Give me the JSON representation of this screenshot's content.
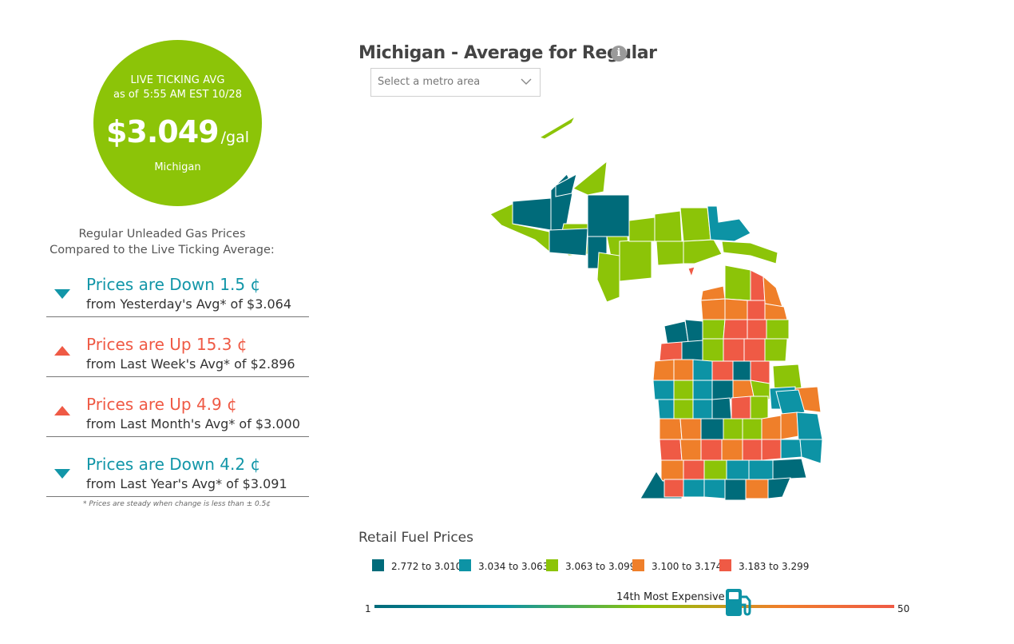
{
  "live_avg": {
    "label": "LIVE TICKING AVG",
    "as_of_prefix": "as of",
    "time": "5:55 AM EST 10/28",
    "price": "$3.049",
    "unit": "/gal",
    "state": "Michigan"
  },
  "comparisons": {
    "title_line1": "Regular Unleaded Gas Prices",
    "title_line2": "Compared to the Live Ticking Average:",
    "items": [
      {
        "direction": "down",
        "headline": "Prices are Down 1.5 ¢",
        "detail": "from Yesterday's Avg* of $3.064"
      },
      {
        "direction": "up",
        "headline": "Prices are Up 15.3 ¢",
        "detail": "from Last Week's Avg* of $2.896"
      },
      {
        "direction": "up",
        "headline": "Prices are Up 4.9 ¢",
        "detail": "from Last Month's Avg* of $3.000"
      },
      {
        "direction": "down",
        "headline": "Prices are Down 4.2 ¢",
        "detail": "from Last Year's Avg* of $3.091"
      }
    ],
    "footnote": "* Prices are steady when change is less than ± 0.5¢"
  },
  "map": {
    "title": "Michigan - Average for Regular",
    "info_icon": "info-icon",
    "metro_select": {
      "placeholder": "Select a metro area"
    }
  },
  "legend": {
    "title": "Retail Fuel Prices",
    "items": [
      {
        "label": "2.772 to 3.010",
        "color": "#006b7a"
      },
      {
        "label": "3.034 to 3.063",
        "color": "#0d93a5"
      },
      {
        "label": "3.063 to 3.099",
        "color": "#8cc408"
      },
      {
        "label": "3.100 to 3.174",
        "color": "#ef7f2a"
      },
      {
        "label": "3.183 to 3.299",
        "color": "#ef5a45"
      }
    ]
  },
  "rank": {
    "label": "14th Most Expensive",
    "min": "1",
    "max": "50",
    "position": 14,
    "icon": "gas-pump-icon"
  },
  "colors": {
    "circle": "#8cc408",
    "down": "#1296a8",
    "up": "#ef5a45"
  }
}
